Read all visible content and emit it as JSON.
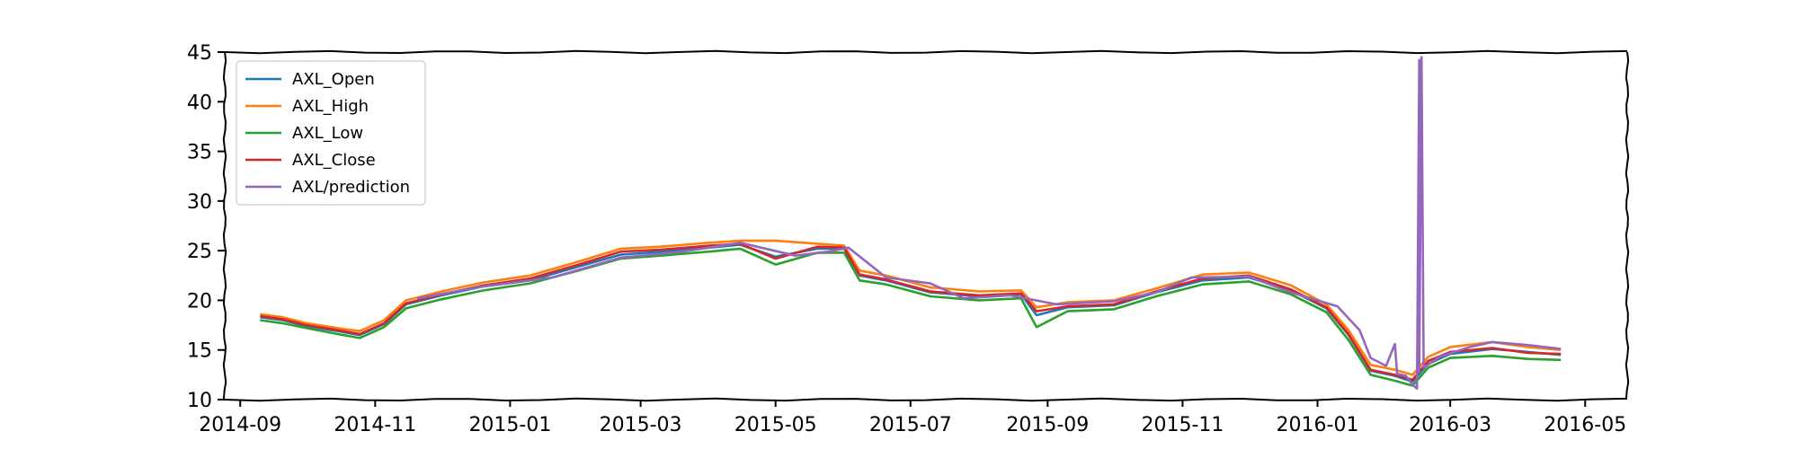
{
  "chart_data": {
    "type": "line",
    "title": "",
    "xlabel": "",
    "ylabel": "",
    "x_ticks": [
      "2014-09",
      "2014-11",
      "2015-01",
      "2015-03",
      "2015-05",
      "2015-07",
      "2015-09",
      "2015-11",
      "2016-01",
      "2016-03",
      "2016-05"
    ],
    "y_ticks": [
      10,
      15,
      20,
      25,
      30,
      35,
      40,
      45
    ],
    "xlim": [
      "2014-08-25",
      "2016-05-20"
    ],
    "ylim": [
      10,
      45
    ],
    "grid": false,
    "legend_position": "top-left",
    "series": [
      {
        "name": "AXL_Open",
        "color": "#1f77b4",
        "points": [
          [
            "2014-09-10",
            18.3
          ],
          [
            "2014-09-20",
            18.0
          ],
          [
            "2014-10-01",
            17.4
          ],
          [
            "2014-10-15",
            16.9
          ],
          [
            "2014-10-25",
            16.5
          ],
          [
            "2014-11-05",
            17.6
          ],
          [
            "2014-11-15",
            19.6
          ],
          [
            "2014-12-01",
            20.5
          ],
          [
            "2014-12-20",
            21.4
          ],
          [
            "2015-01-10",
            22.0
          ],
          [
            "2015-02-01",
            23.4
          ],
          [
            "2015-02-20",
            24.6
          ],
          [
            "2015-03-10",
            24.9
          ],
          [
            "2015-04-01",
            25.3
          ],
          [
            "2015-04-15",
            25.6
          ],
          [
            "2015-05-01",
            24.4
          ],
          [
            "2015-05-20",
            25.2
          ],
          [
            "2015-06-01",
            25.2
          ],
          [
            "2015-06-08",
            22.5
          ],
          [
            "2015-06-20",
            22.0
          ],
          [
            "2015-07-10",
            20.8
          ],
          [
            "2015-08-01",
            20.4
          ],
          [
            "2015-08-20",
            20.6
          ],
          [
            "2015-08-27",
            18.5
          ],
          [
            "2015-09-10",
            19.3
          ],
          [
            "2015-10-01",
            19.5
          ],
          [
            "2015-10-20",
            20.8
          ],
          [
            "2015-11-10",
            22.0
          ],
          [
            "2015-12-01",
            22.3
          ],
          [
            "2015-12-20",
            21.0
          ],
          [
            "2016-01-05",
            19.2
          ],
          [
            "2016-01-15",
            16.5
          ],
          [
            "2016-01-25",
            12.9
          ],
          [
            "2016-02-05",
            12.4
          ],
          [
            "2016-02-13",
            11.8
          ],
          [
            "2016-02-20",
            13.6
          ],
          [
            "2016-03-01",
            14.6
          ],
          [
            "2016-03-20",
            15.1
          ],
          [
            "2016-04-05",
            14.8
          ],
          [
            "2016-04-20",
            14.5
          ]
        ]
      },
      {
        "name": "AXL_High",
        "color": "#ff7f0e",
        "points": [
          [
            "2014-09-10",
            18.6
          ],
          [
            "2014-09-20",
            18.3
          ],
          [
            "2014-10-01",
            17.7
          ],
          [
            "2014-10-15",
            17.2
          ],
          [
            "2014-10-25",
            16.9
          ],
          [
            "2014-11-05",
            18.0
          ],
          [
            "2014-11-15",
            20.0
          ],
          [
            "2014-12-01",
            20.9
          ],
          [
            "2014-12-20",
            21.8
          ],
          [
            "2015-01-10",
            22.5
          ],
          [
            "2015-02-01",
            23.9
          ],
          [
            "2015-02-20",
            25.2
          ],
          [
            "2015-03-10",
            25.4
          ],
          [
            "2015-04-01",
            25.8
          ],
          [
            "2015-04-15",
            26.0
          ],
          [
            "2015-05-01",
            26.0
          ],
          [
            "2015-05-20",
            25.7
          ],
          [
            "2015-06-01",
            25.5
          ],
          [
            "2015-06-08",
            23.0
          ],
          [
            "2015-06-20",
            22.5
          ],
          [
            "2015-07-10",
            21.3
          ],
          [
            "2015-08-01",
            20.9
          ],
          [
            "2015-08-20",
            21.0
          ],
          [
            "2015-08-27",
            19.3
          ],
          [
            "2015-09-10",
            19.8
          ],
          [
            "2015-10-01",
            20.0
          ],
          [
            "2015-10-20",
            21.2
          ],
          [
            "2015-11-10",
            22.6
          ],
          [
            "2015-12-01",
            22.8
          ],
          [
            "2015-12-20",
            21.5
          ],
          [
            "2016-01-05",
            19.6
          ],
          [
            "2016-01-15",
            17.0
          ],
          [
            "2016-01-25",
            13.5
          ],
          [
            "2016-02-05",
            13.0
          ],
          [
            "2016-02-13",
            12.5
          ],
          [
            "2016-02-20",
            14.3
          ],
          [
            "2016-03-01",
            15.3
          ],
          [
            "2016-03-20",
            15.8
          ],
          [
            "2016-04-05",
            15.3
          ],
          [
            "2016-04-20",
            15.0
          ]
        ]
      },
      {
        "name": "AXL_Low",
        "color": "#2ca02c",
        "points": [
          [
            "2014-09-10",
            18.0
          ],
          [
            "2014-09-20",
            17.7
          ],
          [
            "2014-10-01",
            17.2
          ],
          [
            "2014-10-15",
            16.6
          ],
          [
            "2014-10-25",
            16.2
          ],
          [
            "2014-11-05",
            17.3
          ],
          [
            "2014-11-15",
            19.2
          ],
          [
            "2014-12-01",
            20.1
          ],
          [
            "2014-12-20",
            21.0
          ],
          [
            "2015-01-10",
            21.7
          ],
          [
            "2015-02-01",
            23.0
          ],
          [
            "2015-02-20",
            24.2
          ],
          [
            "2015-03-10",
            24.5
          ],
          [
            "2015-04-01",
            24.9
          ],
          [
            "2015-04-15",
            25.2
          ],
          [
            "2015-05-01",
            23.6
          ],
          [
            "2015-05-20",
            24.8
          ],
          [
            "2015-06-01",
            24.8
          ],
          [
            "2015-06-08",
            22.0
          ],
          [
            "2015-06-20",
            21.6
          ],
          [
            "2015-07-10",
            20.4
          ],
          [
            "2015-08-01",
            20.0
          ],
          [
            "2015-08-20",
            20.2
          ],
          [
            "2015-08-27",
            17.3
          ],
          [
            "2015-09-10",
            18.9
          ],
          [
            "2015-10-01",
            19.1
          ],
          [
            "2015-10-20",
            20.4
          ],
          [
            "2015-11-10",
            21.6
          ],
          [
            "2015-12-01",
            21.9
          ],
          [
            "2015-12-20",
            20.6
          ],
          [
            "2016-01-05",
            18.8
          ],
          [
            "2016-01-15",
            16.0
          ],
          [
            "2016-01-25",
            12.5
          ],
          [
            "2016-02-05",
            11.9
          ],
          [
            "2016-02-13",
            11.4
          ],
          [
            "2016-02-20",
            13.2
          ],
          [
            "2016-03-01",
            14.2
          ],
          [
            "2016-03-20",
            14.4
          ],
          [
            "2016-04-05",
            14.1
          ],
          [
            "2016-04-20",
            14.0
          ]
        ]
      },
      {
        "name": "AXL_Close",
        "color": "#d62728",
        "points": [
          [
            "2014-09-10",
            18.4
          ],
          [
            "2014-09-20",
            18.1
          ],
          [
            "2014-10-01",
            17.5
          ],
          [
            "2014-10-15",
            17.0
          ],
          [
            "2014-10-25",
            16.6
          ],
          [
            "2014-11-05",
            17.7
          ],
          [
            "2014-11-15",
            19.7
          ],
          [
            "2014-12-01",
            20.6
          ],
          [
            "2014-12-20",
            21.5
          ],
          [
            "2015-01-10",
            22.2
          ],
          [
            "2015-02-01",
            23.6
          ],
          [
            "2015-02-20",
            24.9
          ],
          [
            "2015-03-10",
            25.1
          ],
          [
            "2015-04-01",
            25.5
          ],
          [
            "2015-04-15",
            25.7
          ],
          [
            "2015-05-01",
            24.2
          ],
          [
            "2015-05-20",
            25.4
          ],
          [
            "2015-06-01",
            25.3
          ],
          [
            "2015-06-08",
            22.6
          ],
          [
            "2015-06-20",
            22.1
          ],
          [
            "2015-07-10",
            20.9
          ],
          [
            "2015-08-01",
            20.5
          ],
          [
            "2015-08-20",
            20.7
          ],
          [
            "2015-08-27",
            18.9
          ],
          [
            "2015-09-10",
            19.4
          ],
          [
            "2015-10-01",
            19.6
          ],
          [
            "2015-10-20",
            20.9
          ],
          [
            "2015-11-10",
            22.2
          ],
          [
            "2015-12-01",
            22.5
          ],
          [
            "2015-12-20",
            21.1
          ],
          [
            "2016-01-05",
            19.3
          ],
          [
            "2016-01-15",
            16.6
          ],
          [
            "2016-01-25",
            13.0
          ],
          [
            "2016-02-05",
            12.5
          ],
          [
            "2016-02-13",
            12.0
          ],
          [
            "2016-02-20",
            13.9
          ],
          [
            "2016-03-01",
            14.8
          ],
          [
            "2016-03-20",
            15.2
          ],
          [
            "2016-04-05",
            14.7
          ],
          [
            "2016-04-20",
            14.6
          ]
        ]
      },
      {
        "name": "AXL/prediction",
        "color": "#9467bd",
        "points": [
          [
            "2014-11-20",
            20.2
          ],
          [
            "2014-12-20",
            21.4
          ],
          [
            "2015-01-20",
            22.3
          ],
          [
            "2015-02-20",
            24.3
          ],
          [
            "2015-03-20",
            24.9
          ],
          [
            "2015-04-15",
            25.8
          ],
          [
            "2015-05-10",
            24.5
          ],
          [
            "2015-05-25",
            24.9
          ],
          [
            "2015-06-03",
            25.3
          ],
          [
            "2015-06-20",
            22.3
          ],
          [
            "2015-07-10",
            21.7
          ],
          [
            "2015-07-25",
            20.2
          ],
          [
            "2015-08-15",
            20.5
          ],
          [
            "2015-09-05",
            19.6
          ],
          [
            "2015-10-01",
            19.9
          ],
          [
            "2015-10-20",
            20.8
          ],
          [
            "2015-11-05",
            22.3
          ],
          [
            "2015-12-01",
            22.4
          ],
          [
            "2015-12-20",
            20.8
          ],
          [
            "2016-01-10",
            19.4
          ],
          [
            "2016-01-20",
            17.0
          ],
          [
            "2016-01-25",
            14.2
          ],
          [
            "2016-02-01",
            13.4
          ],
          [
            "2016-02-05",
            15.6
          ],
          [
            "2016-02-06",
            12.6
          ],
          [
            "2016-02-10",
            12.4
          ],
          [
            "2016-02-13",
            11.5
          ],
          [
            "2016-02-15",
            11.1
          ],
          [
            "2016-02-16",
            44.2
          ],
          [
            "2016-02-16",
            12.8
          ],
          [
            "2016-02-17",
            44.5
          ],
          [
            "2016-02-18",
            13.2
          ],
          [
            "2016-02-25",
            14.3
          ],
          [
            "2016-03-10",
            15.3
          ],
          [
            "2016-03-20",
            15.8
          ],
          [
            "2016-04-05",
            15.5
          ],
          [
            "2016-04-20",
            15.1
          ]
        ]
      }
    ]
  }
}
